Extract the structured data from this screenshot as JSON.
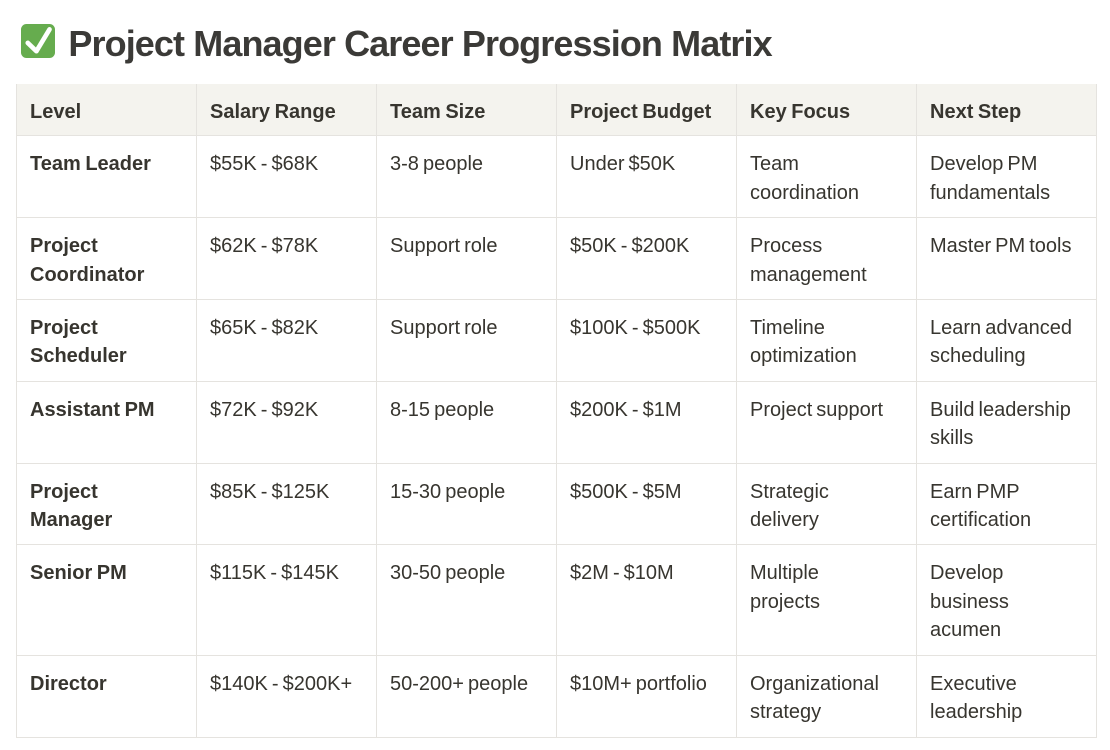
{
  "page": {
    "title": "Project Manager Career Progression Matrix",
    "title_icon": "check-mark-button-emoji",
    "icon_green": "#66ac4e",
    "header_bg": "#f4f3ee",
    "border_color": "#e5e3df",
    "text_color": "#37352f"
  },
  "table": {
    "columns": [
      "Level",
      "Salary Range",
      "Team Size",
      "Project Budget",
      "Key Focus",
      "Next Step"
    ],
    "rows": [
      [
        "Team Leader",
        "$55K - $68K",
        "3-8 people",
        "Under $50K",
        "Team coordination",
        "Develop PM fundamentals"
      ],
      [
        "Project Coordinator",
        "$62K - $78K",
        "Support role",
        "$50K - $200K",
        "Process management",
        "Master PM tools"
      ],
      [
        "Project Scheduler",
        "$65K - $82K",
        "Support role",
        "$100K - $500K",
        "Timeline optimization",
        "Learn advanced scheduling"
      ],
      [
        "Assistant PM",
        "$72K - $92K",
        "8-15 people",
        "$200K - $1M",
        "Project support",
        "Build leadership skills"
      ],
      [
        "Project Manager",
        "$85K - $125K",
        "15-30 people",
        "$500K - $5M",
        "Strategic delivery",
        "Earn PMP certification"
      ],
      [
        "Senior PM",
        "$115K - $145K",
        "30-50 people",
        "$2M - $10M",
        "Multiple projects",
        "Develop business acumen"
      ],
      [
        "Director",
        "$140K - $200K+",
        "50-200+ people",
        "$10M+ portfolio",
        "Organizational strategy",
        "Executive leadership"
      ]
    ]
  }
}
